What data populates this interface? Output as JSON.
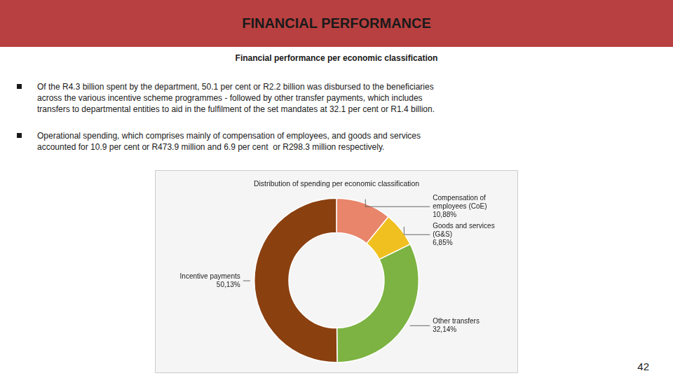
{
  "chart_data": {
    "type": "doughnut",
    "title": "FINANCIAL PERFORMANCE",
    "subtitle": "Financial performance per economic classification",
    "annotations": [
      "Of the R4.3 billion spent by the department, 50.1 per cent or R2.2 billion was disbursed to the beneficiaries\nacross the various incentive scheme programmes - followed by other transfer payments, which includes\ntransfers to departmental entities to aid in the fulfilment of the set mandates at 32.1 per cent or R1.4 billion.",
      "Operational spending, which comprises mainly of compensation of employees, and goods and services\naccounted for 10.9 per cent or R473.9 million and 6.9 per cent  or R298.3 million respectively.",
      "Distribution of spending per economic classification",
      "42"
    ],
    "categories": [
      "Compensation of\nemployees (CoE)",
      "Goods and services\n(G&S)",
      "Other transfers",
      "Incentive payments"
    ],
    "values": [
      10.88,
      6.85,
      32.14,
      50.13
    ],
    "value_labels": [
      "10,88%",
      "6,85%",
      "32,14%",
      "50,13%"
    ],
    "colors": [
      "#E8856A",
      "#F0C020",
      "#7CB342",
      "#8B4010"
    ],
    "data_labels": true
  }
}
